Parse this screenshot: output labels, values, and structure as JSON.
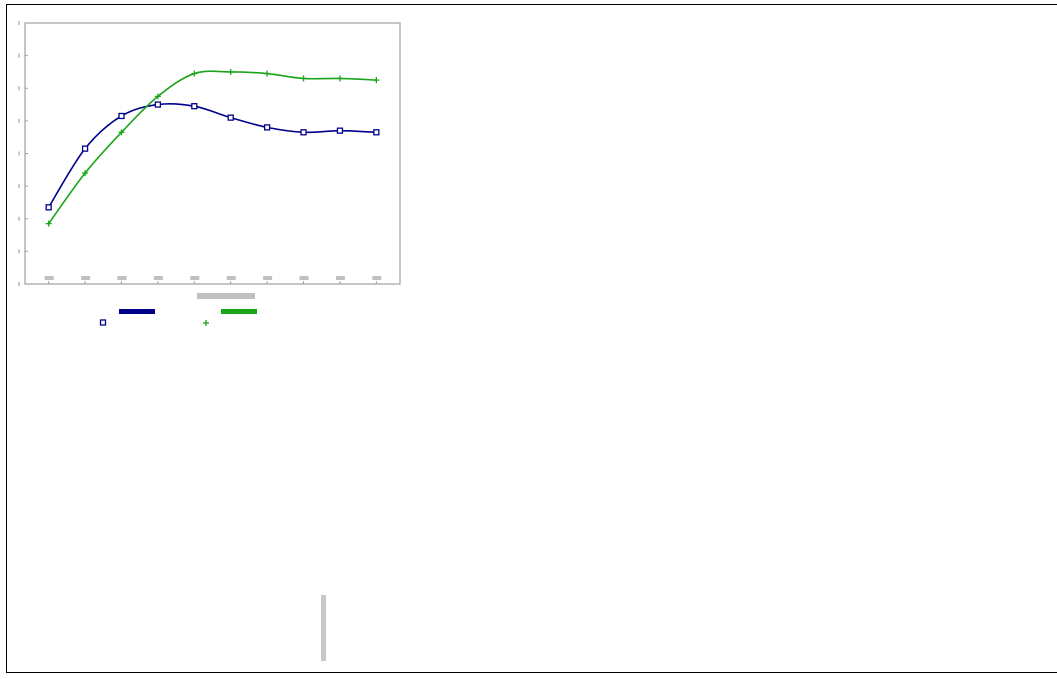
{
  "chart_data": {
    "type": "line",
    "title": "",
    "xlabel": "",
    "ylabel": "",
    "x": [
      1,
      2,
      3,
      4,
      5,
      6,
      7,
      8,
      9,
      10
    ],
    "xlim": [
      0.35,
      10.65
    ],
    "ylim": [
      0,
      8
    ],
    "grid": false,
    "legend_position": "bottom",
    "series": [
      {
        "name": "",
        "color": "#00008b",
        "marker": "square",
        "values": [
          2.35,
          4.15,
          5.15,
          5.5,
          5.45,
          5.1,
          4.8,
          4.65,
          4.7,
          4.65
        ]
      },
      {
        "name": "",
        "color": "#1aa51a",
        "marker": "plus",
        "values": [
          1.85,
          3.4,
          4.65,
          5.75,
          6.45,
          6.5,
          6.45,
          6.3,
          6.3,
          6.25
        ]
      }
    ]
  }
}
